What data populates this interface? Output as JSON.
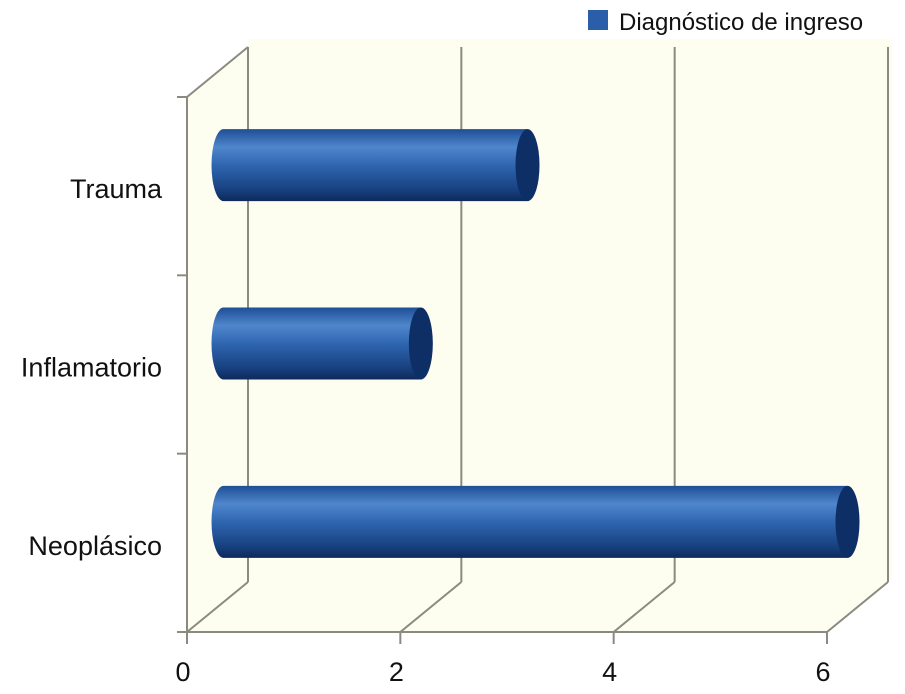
{
  "chart_data": {
    "type": "bar",
    "orientation": "horizontal",
    "style": "3d-cylinder",
    "categories": [
      "Trauma",
      "Inflamatorio",
      "Neoplásico"
    ],
    "series": [
      {
        "name": "Diagnóstico de ingreso",
        "values": [
          3,
          2,
          6
        ],
        "color": "#2a5ea8"
      }
    ],
    "xlim": [
      0,
      6
    ],
    "xticks": [
      "0",
      "2",
      "4",
      "6"
    ],
    "grid": true,
    "legend": "top-right",
    "background": "#fdfdf0"
  }
}
